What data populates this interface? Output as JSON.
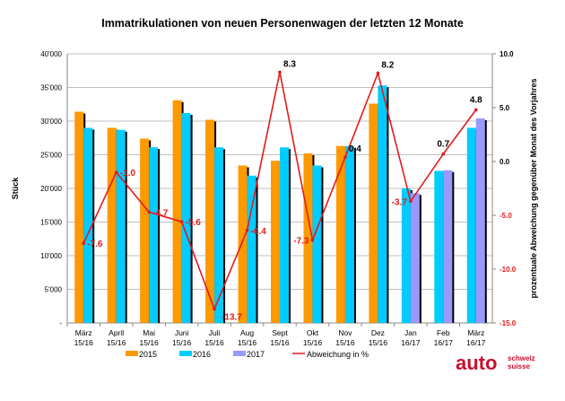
{
  "chart_data": {
    "type": "bar",
    "title": "Immatrikulationen von neuen Personenwagen der letzten 12 Monate",
    "ylabel": "Stück",
    "y2label": "prozentuale Abweichung gegenüber Monat des Vorjahres",
    "ylim": [
      0,
      40000
    ],
    "y2lim": [
      -15,
      10
    ],
    "yticks": [
      "-",
      "5'000",
      "10'000",
      "15'000",
      "20'000",
      "25'000",
      "30'000",
      "35'000",
      "40'000"
    ],
    "y2ticks": [
      "-15.0",
      "-10.0",
      "-5.0",
      "0.0",
      "5.0",
      "10.0"
    ],
    "grid": true,
    "legend_position": "bottom",
    "categories": [
      [
        "März",
        "15/16"
      ],
      [
        "April",
        "15/16"
      ],
      [
        "Mai",
        "15/16"
      ],
      [
        "Juni",
        "15/16"
      ],
      [
        "Juli",
        "15/16"
      ],
      [
        "Aug",
        "15/16"
      ],
      [
        "Sept",
        "15/16"
      ],
      [
        "Okt",
        "15/16"
      ],
      [
        "Nov",
        "15/16"
      ],
      [
        "Dez",
        "15/16"
      ],
      [
        "Jan",
        "16/17"
      ],
      [
        "Feb",
        "16/17"
      ],
      [
        "März",
        "16/17"
      ]
    ],
    "series": [
      {
        "name": "2015",
        "color": "#FF9900",
        "values": [
          31400,
          29000,
          27400,
          33100,
          30200,
          23400,
          24100,
          25200,
          26300,
          32600,
          null,
          null,
          null
        ]
      },
      {
        "name": "2016",
        "color": "#00CCFF",
        "values": [
          29000,
          28700,
          26100,
          31200,
          26100,
          21900,
          26100,
          23400,
          26300,
          35300,
          20000,
          22600,
          29000
        ]
      },
      {
        "name": "2017",
        "color": "#9999FF",
        "values": [
          null,
          null,
          null,
          null,
          null,
          null,
          null,
          null,
          null,
          null,
          19300,
          22700,
          30400
        ]
      },
      {
        "name": "Abweichung in %",
        "type": "line",
        "axis": "right",
        "color": "#E31A1C",
        "values": [
          -7.6,
          -1.0,
          -4.7,
          -5.6,
          -13.7,
          -6.4,
          8.3,
          -7.3,
          0.4,
          8.2,
          -3.7,
          0.7,
          4.8
        ],
        "labels": [
          "-7.6",
          "-1.0",
          "-4.7",
          "-5.6",
          "-13.7",
          "-6.4",
          "8.3",
          "-7.3",
          "0.4",
          "8.2",
          "-3.7",
          "0.7",
          "4.8"
        ]
      }
    ]
  },
  "logo": {
    "main": "auto",
    "sub1": "schweiz",
    "sub2": "suisse",
    "color": "#C8102E"
  }
}
